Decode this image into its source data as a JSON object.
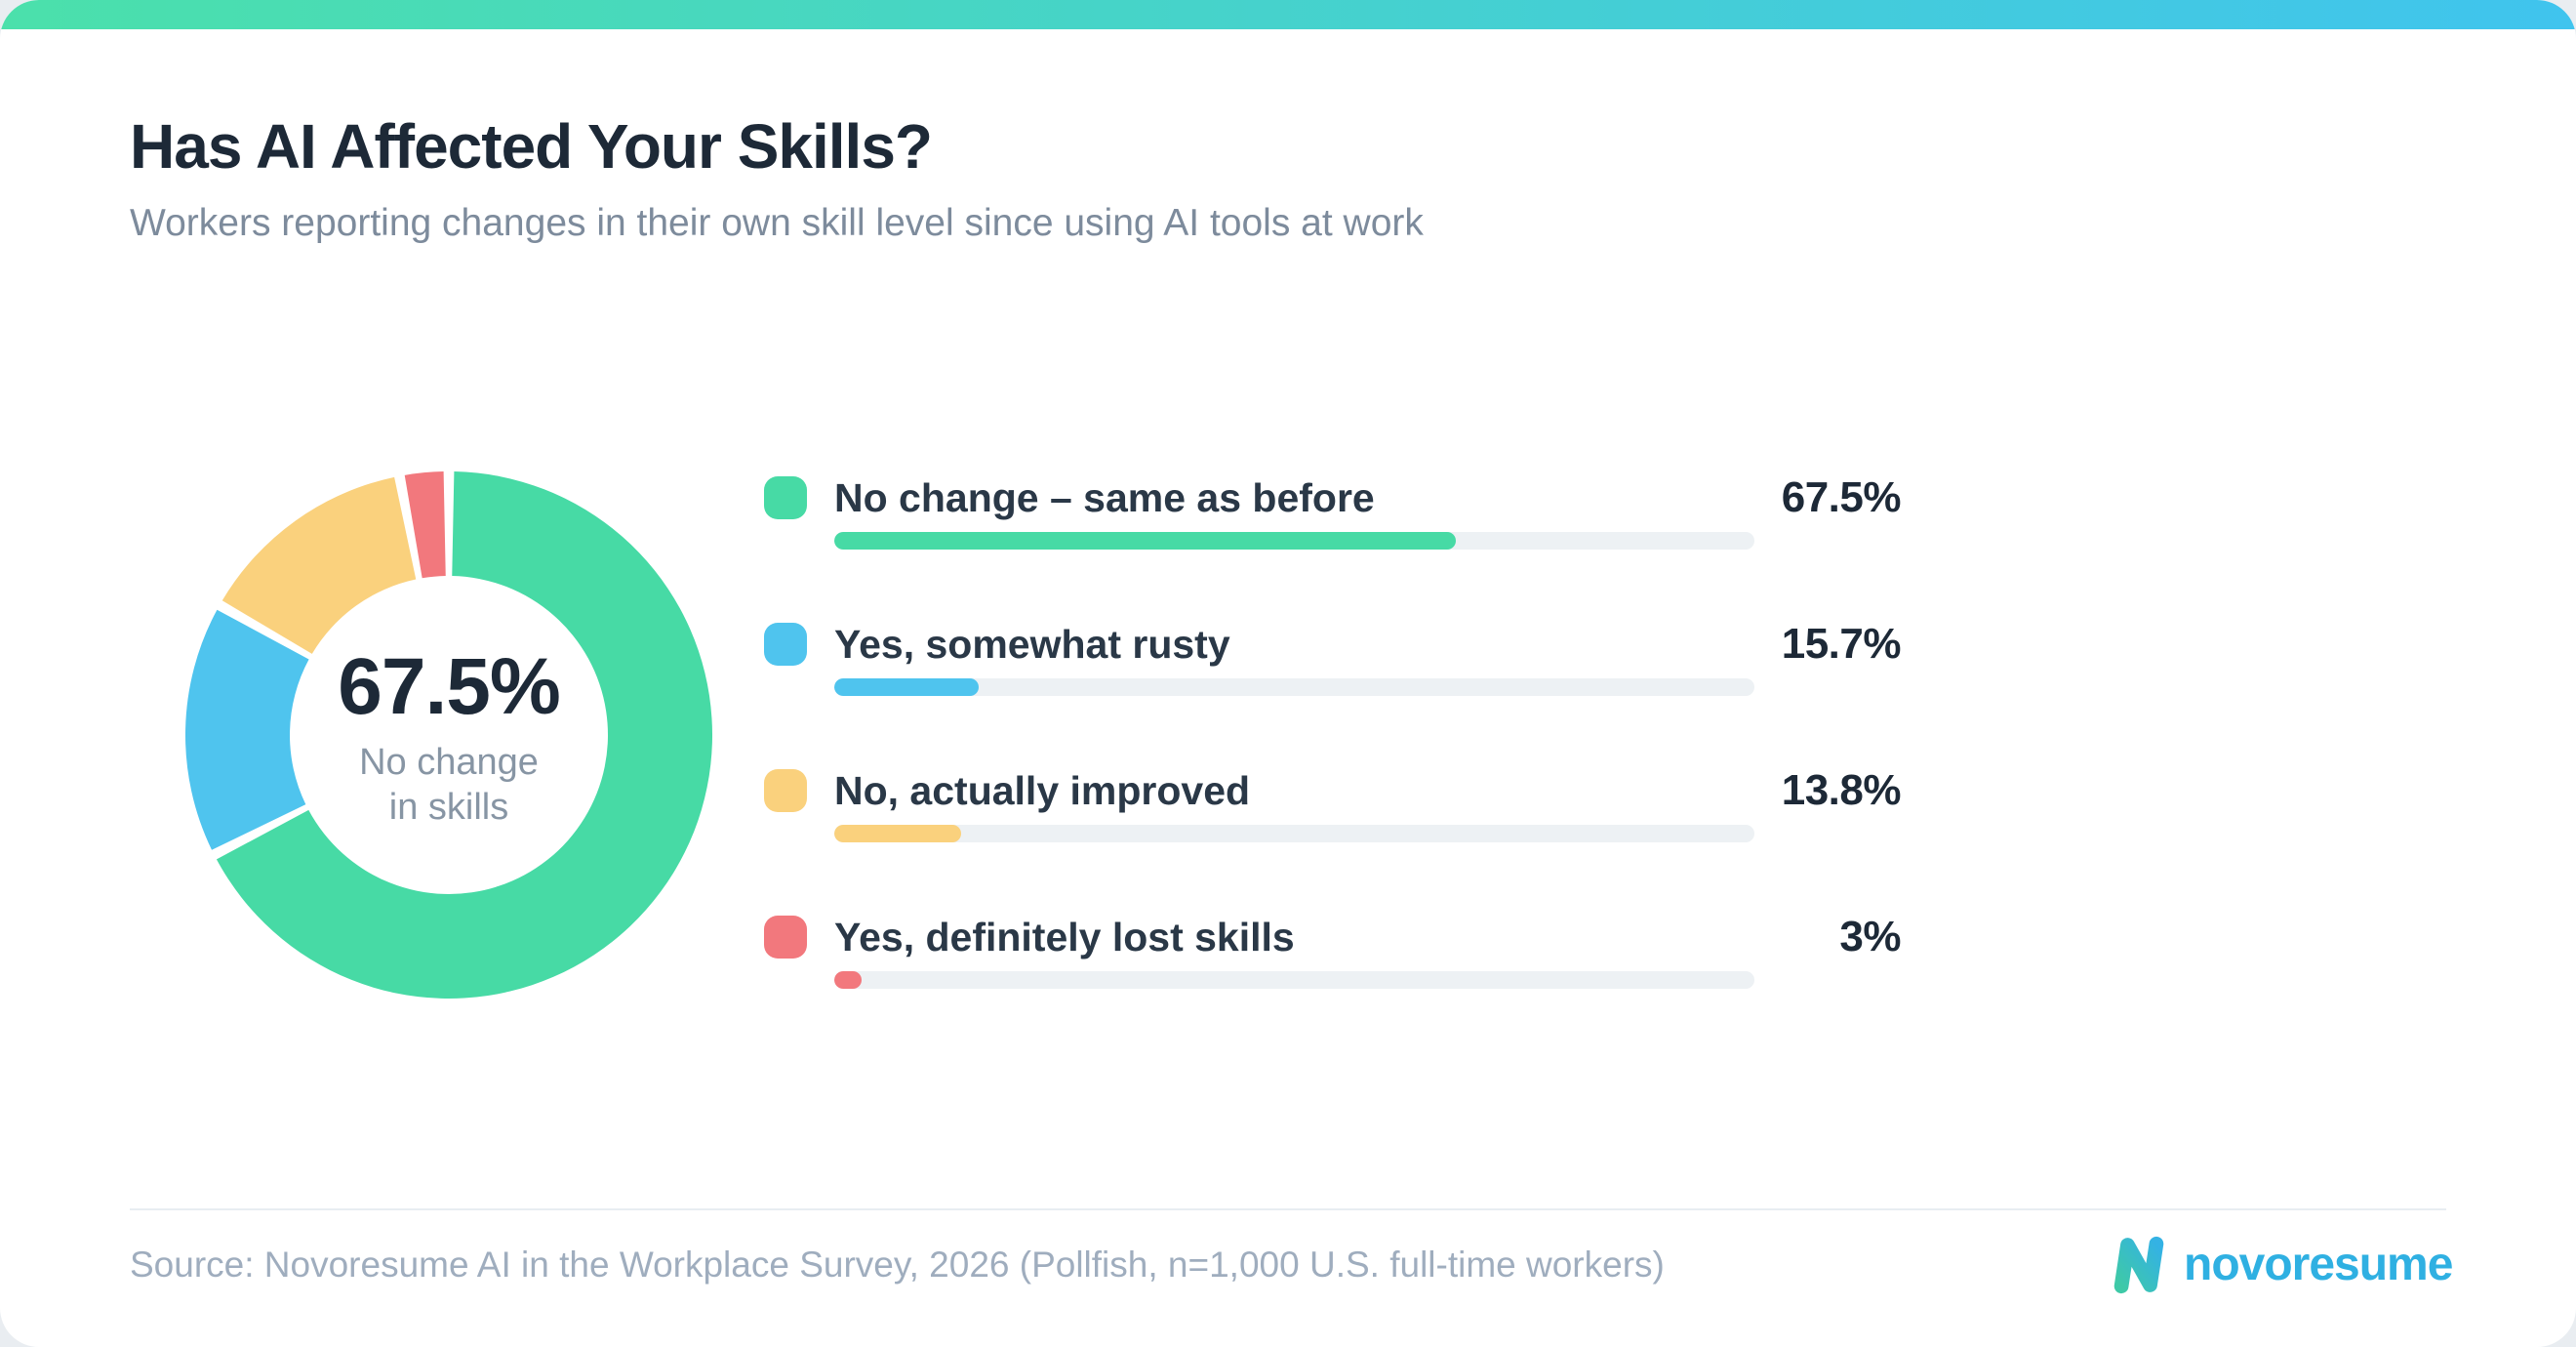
{
  "header": {
    "title": "Has AI Affected Your Skills?",
    "subtitle": "Workers reporting changes in their own skill level since using AI tools at work"
  },
  "chart_data": {
    "type": "pie",
    "subtype": "donut-with-bar-legend",
    "title": "Has AI Affected Your Skills?",
    "subtitle": "Workers reporting changes in their own skill level since using AI tools at work",
    "donut_center": {
      "value": "67.5%",
      "label": "No change\nin skills"
    },
    "items": [
      {
        "label": "No change – same as before",
        "value": 67.5,
        "value_label": "67.5%",
        "color": "#47daa5"
      },
      {
        "label": "Yes, somewhat rusty",
        "value": 15.7,
        "value_label": "15.7%",
        "color": "#4fc4ee"
      },
      {
        "label": "No, actually improved",
        "value": 13.8,
        "value_label": "13.8%",
        "color": "#fad17d"
      },
      {
        "label": "Yes, definitely lost skills",
        "value": 3,
        "value_label": "3%",
        "color": "#f2787d"
      }
    ],
    "legend_position": "right",
    "bar_track_color": "#edf1f4",
    "bar_scale_max": 100,
    "donut_start_angle_deg": 0,
    "donut_direction": "clockwise"
  },
  "footer": {
    "source": "Source: Novoresume AI in the Workplace Survey, 2026 (Pollfish, n=1,000 U.S. full-time workers)",
    "brand": "novoresume"
  },
  "colors": {
    "accent_gradient_left": "#4be0ab",
    "accent_gradient_right": "#40c4ee",
    "title_text": "#1d2937",
    "subtitle_text": "#7d8b9c",
    "source_text": "#9fadbe",
    "logo_blue": "#2fb0e2",
    "logo_gradient_start": "#3ec9a7",
    "logo_gradient_end": "#34b2e4"
  }
}
